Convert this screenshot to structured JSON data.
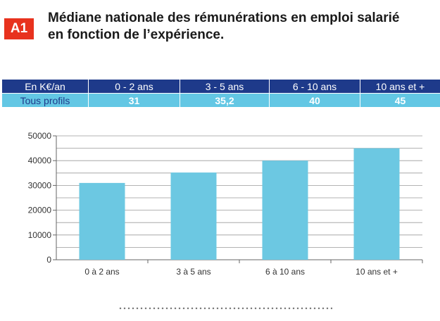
{
  "header": {
    "badge": "A1",
    "title_line1": "Médiane nationale des rémunérations en emploi salarié",
    "title_line2": "en fonction de l’expérience."
  },
  "table": {
    "headers": [
      "En K€/an",
      "0 - 2 ans",
      "3 - 5 ans",
      "6 - 10 ans",
      "10 ans et +"
    ],
    "row": {
      "label": "Tous profils",
      "values": [
        "31",
        "35,2",
        "40",
        "45"
      ]
    },
    "colors": {
      "header_bg": "#1e3a8a",
      "row_bg": "#63c7e4",
      "label_text": "#1e3a8a"
    }
  },
  "chart_data": {
    "type": "bar",
    "categories": [
      "0 à 2 ans",
      "3 à 5 ans",
      "6 à 10 ans",
      "10 ans et +"
    ],
    "values": [
      31000,
      35200,
      40000,
      45000
    ],
    "ylim": [
      0,
      50000
    ],
    "yticks": [
      "0",
      "10000",
      "20000",
      "30000",
      "40000",
      "50000"
    ],
    "grid": true,
    "legend": "none",
    "bar_color": "#6cc8e2"
  }
}
